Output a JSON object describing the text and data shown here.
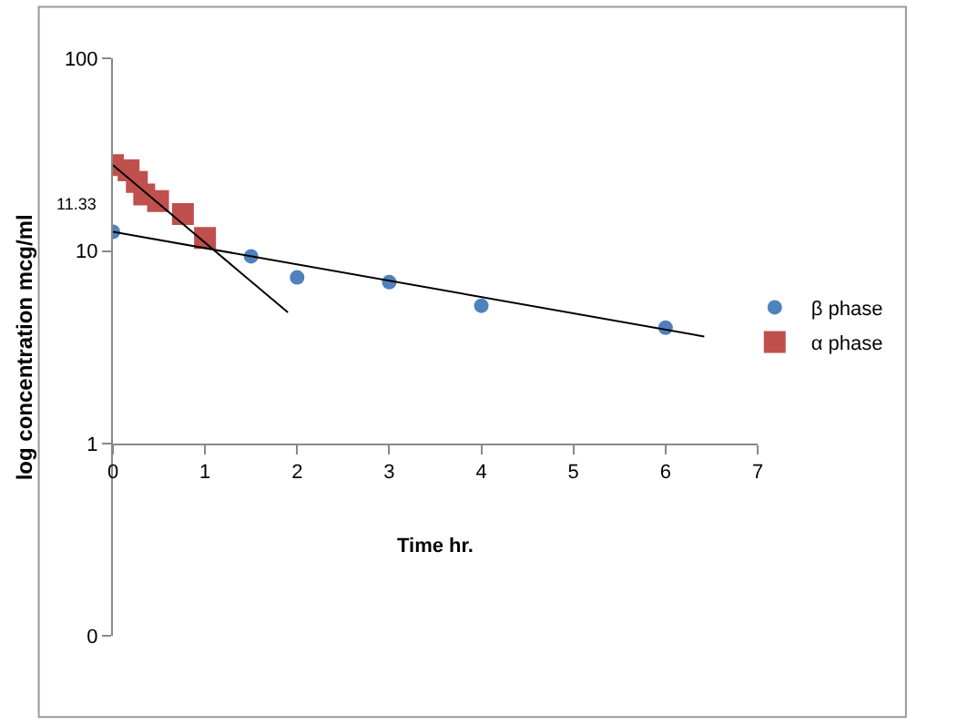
{
  "chart_data": {
    "type": "scatter",
    "xlabel": "Time hr.",
    "ylabel": "log concentration mcg/ml",
    "xlim": [
      0,
      7
    ],
    "xticks": [
      0,
      1,
      2,
      3,
      4,
      5,
      6,
      7
    ],
    "ylim": [
      0.1,
      100
    ],
    "yticks": [
      {
        "value": 0.1,
        "label": "0"
      },
      1,
      10,
      100
    ],
    "log": "y",
    "legend": "right",
    "annotations": [
      "11.33"
    ],
    "series": [
      {
        "name": "β phase",
        "marker": "circle",
        "color": "#4f81bd",
        "x": [
          0,
          1.5,
          2,
          3,
          4,
          6
        ],
        "values": [
          12.6,
          9.4,
          7.3,
          6.9,
          5.2,
          4.0
        ]
      },
      {
        "name": "α phase",
        "marker": "square",
        "color": "#c0504d",
        "x": [
          0,
          0.17,
          0.26,
          0.34,
          0.49,
          0.76,
          1.0
        ],
        "values": [
          28,
          26.3,
          22.9,
          19.7,
          18.2,
          15.6,
          11.7
        ]
      },
      {
        "type": "line",
        "marker": "none",
        "color": "#000000",
        "x": [
          0,
          6.42
        ],
        "values": [
          12.6,
          3.6
        ]
      },
      {
        "type": "line",
        "marker": "none",
        "color": "#000000",
        "x": [
          0,
          1.9
        ],
        "values": [
          28,
          4.8
        ]
      }
    ]
  }
}
